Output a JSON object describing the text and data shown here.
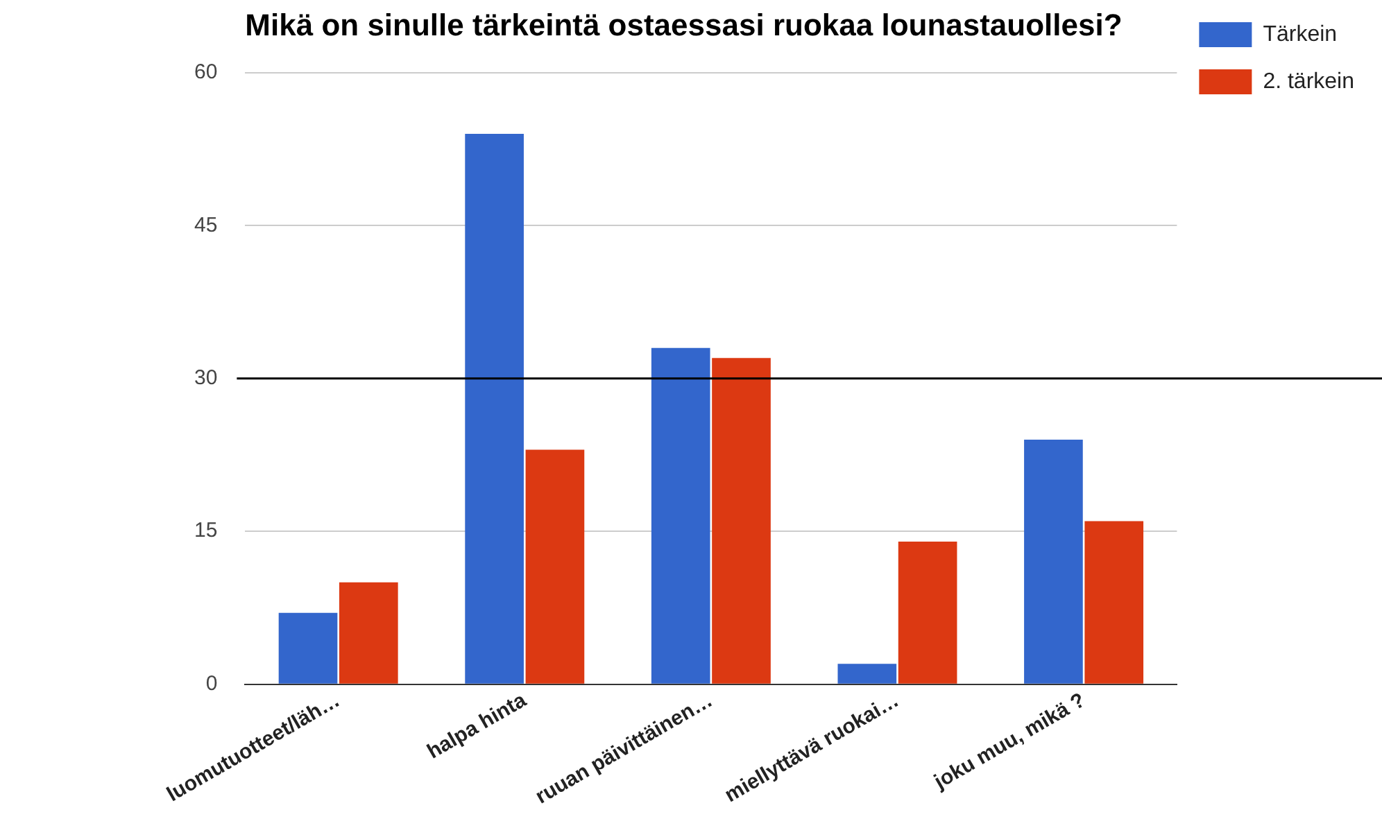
{
  "chart_data": {
    "type": "bar",
    "title": "Mikä on sinulle tärkeintä ostaessasi ruokaa lounastauollesi?",
    "categories": [
      "luomutuotteet/läh…",
      "halpa hinta",
      "ruuan päivittäinen…",
      "miellyttävä ruokai…",
      "joku muu, mikä ?"
    ],
    "series": [
      {
        "name": "Tärkein",
        "color": "#3366cc",
        "values": [
          7,
          54,
          33,
          2,
          24
        ]
      },
      {
        "name": "2. tärkein",
        "color": "#dc3912",
        "values": [
          10,
          23,
          32,
          14,
          16
        ]
      }
    ],
    "ylim": [
      0,
      60
    ],
    "yticks": [
      0,
      15,
      30,
      45,
      60
    ],
    "grid": "y",
    "legend": "top right",
    "ref_lines": [
      {
        "axis": "y",
        "value": 30,
        "color": "#000000"
      }
    ]
  }
}
